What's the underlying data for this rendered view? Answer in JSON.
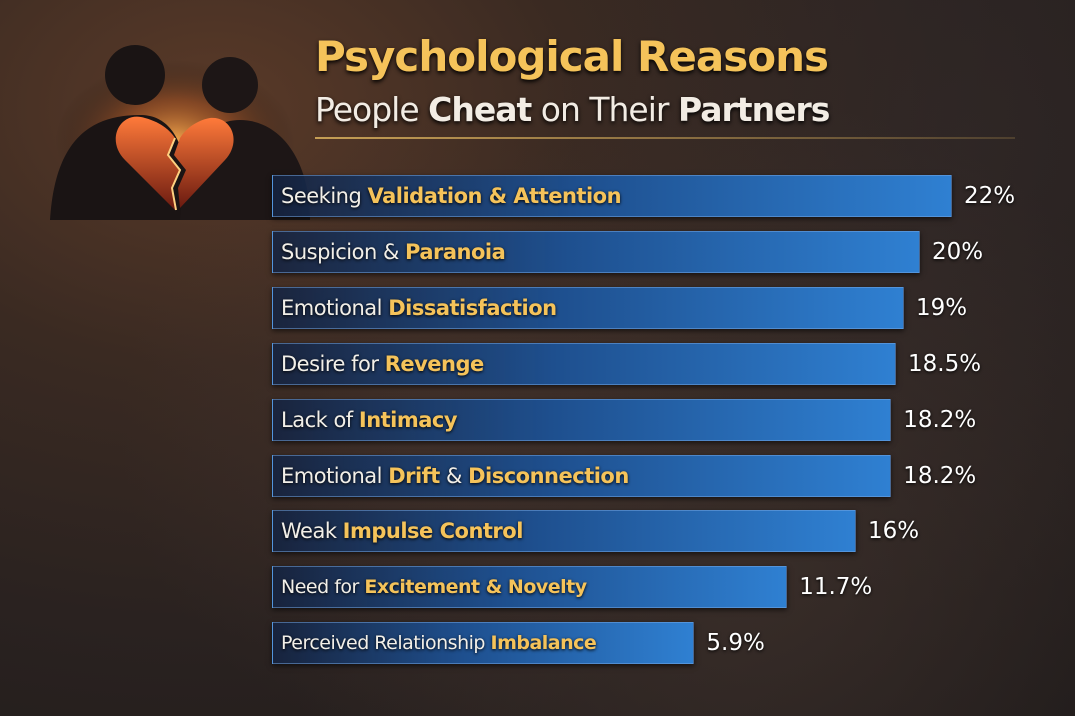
{
  "chart_data": {
    "type": "bar",
    "orientation": "horizontal",
    "title": "Psychological Reasons",
    "subtitle_parts": [
      {
        "text": "People ",
        "bold": false
      },
      {
        "text": "Cheat",
        "bold": true
      },
      {
        "text": " on Their ",
        "bold": false
      },
      {
        "text": "Partners",
        "bold": true
      }
    ],
    "categories": [
      [
        {
          "t": "Seeking ",
          "h": false
        },
        {
          "t": "Validation & Attention",
          "h": true
        }
      ],
      [
        {
          "t": "Suspicion & ",
          "h": false
        },
        {
          "t": "Paranoia",
          "h": true
        }
      ],
      [
        {
          "t": "Emotional ",
          "h": false
        },
        {
          "t": "Dissatisfaction",
          "h": true
        }
      ],
      [
        {
          "t": "Desire for ",
          "h": false
        },
        {
          "t": "Revenge",
          "h": true
        }
      ],
      [
        {
          "t": "Lack of ",
          "h": false
        },
        {
          "t": "Intimacy",
          "h": true
        }
      ],
      [
        {
          "t": "Emotional ",
          "h": false
        },
        {
          "t": "Drift",
          "h": true
        },
        {
          "t": " & ",
          "h": false
        },
        {
          "t": "Disconnection",
          "h": true
        }
      ],
      [
        {
          "t": "Weak ",
          "h": false
        },
        {
          "t": "Impulse Control",
          "h": true
        }
      ],
      [
        {
          "t": "Need for ",
          "h": false
        },
        {
          "t": "Excitement & Novelty",
          "h": true
        }
      ],
      [
        {
          "t": "Perceived Relationship ",
          "h": false
        },
        {
          "t": "Imbalance",
          "h": true
        }
      ]
    ],
    "values": [
      22,
      20,
      19,
      18.5,
      18.2,
      18.2,
      16,
      11.7,
      5.9
    ],
    "value_labels": [
      "22%",
      "20%",
      "19%",
      "18.5%",
      "18.2%",
      "18.2%",
      "16%",
      "11.7%",
      "5.9%"
    ],
    "bar_color": "#2f80d2",
    "highlight_color": "#f5c35a",
    "grid": false,
    "legend": "none"
  }
}
